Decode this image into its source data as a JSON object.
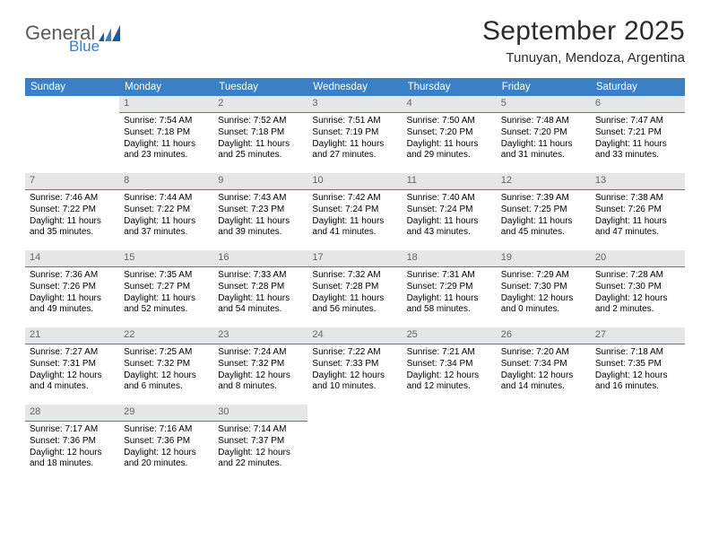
{
  "logo": {
    "text1": "General",
    "text2": "Blue"
  },
  "title": "September 2025",
  "location": "Tunuyan, Mendoza, Argentina",
  "days_of_week": [
    "Sunday",
    "Monday",
    "Tuesday",
    "Wednesday",
    "Thursday",
    "Friday",
    "Saturday"
  ],
  "colors": {
    "header_bg": "#3b7fc4",
    "header_text": "#ffffff",
    "daynum_bg": "#e6e6e6",
    "daynum_text": "#666666",
    "divider": "#3b7fc4"
  },
  "fonts": {
    "title_size_pt": 22,
    "location_size_pt": 11,
    "header_size_pt": 9,
    "body_size_pt": 7.5
  },
  "weeks": [
    [
      null,
      {
        "n": "1",
        "sunrise": "7:54 AM",
        "sunset": "7:18 PM",
        "daylight": "11 hours and 23 minutes."
      },
      {
        "n": "2",
        "sunrise": "7:52 AM",
        "sunset": "7:18 PM",
        "daylight": "11 hours and 25 minutes."
      },
      {
        "n": "3",
        "sunrise": "7:51 AM",
        "sunset": "7:19 PM",
        "daylight": "11 hours and 27 minutes."
      },
      {
        "n": "4",
        "sunrise": "7:50 AM",
        "sunset": "7:20 PM",
        "daylight": "11 hours and 29 minutes."
      },
      {
        "n": "5",
        "sunrise": "7:48 AM",
        "sunset": "7:20 PM",
        "daylight": "11 hours and 31 minutes."
      },
      {
        "n": "6",
        "sunrise": "7:47 AM",
        "sunset": "7:21 PM",
        "daylight": "11 hours and 33 minutes."
      }
    ],
    [
      {
        "n": "7",
        "sunrise": "7:46 AM",
        "sunset": "7:22 PM",
        "daylight": "11 hours and 35 minutes."
      },
      {
        "n": "8",
        "sunrise": "7:44 AM",
        "sunset": "7:22 PM",
        "daylight": "11 hours and 37 minutes."
      },
      {
        "n": "9",
        "sunrise": "7:43 AM",
        "sunset": "7:23 PM",
        "daylight": "11 hours and 39 minutes."
      },
      {
        "n": "10",
        "sunrise": "7:42 AM",
        "sunset": "7:24 PM",
        "daylight": "11 hours and 41 minutes."
      },
      {
        "n": "11",
        "sunrise": "7:40 AM",
        "sunset": "7:24 PM",
        "daylight": "11 hours and 43 minutes."
      },
      {
        "n": "12",
        "sunrise": "7:39 AM",
        "sunset": "7:25 PM",
        "daylight": "11 hours and 45 minutes."
      },
      {
        "n": "13",
        "sunrise": "7:38 AM",
        "sunset": "7:26 PM",
        "daylight": "11 hours and 47 minutes."
      }
    ],
    [
      {
        "n": "14",
        "sunrise": "7:36 AM",
        "sunset": "7:26 PM",
        "daylight": "11 hours and 49 minutes."
      },
      {
        "n": "15",
        "sunrise": "7:35 AM",
        "sunset": "7:27 PM",
        "daylight": "11 hours and 52 minutes."
      },
      {
        "n": "16",
        "sunrise": "7:33 AM",
        "sunset": "7:28 PM",
        "daylight": "11 hours and 54 minutes."
      },
      {
        "n": "17",
        "sunrise": "7:32 AM",
        "sunset": "7:28 PM",
        "daylight": "11 hours and 56 minutes."
      },
      {
        "n": "18",
        "sunrise": "7:31 AM",
        "sunset": "7:29 PM",
        "daylight": "11 hours and 58 minutes."
      },
      {
        "n": "19",
        "sunrise": "7:29 AM",
        "sunset": "7:30 PM",
        "daylight": "12 hours and 0 minutes."
      },
      {
        "n": "20",
        "sunrise": "7:28 AM",
        "sunset": "7:30 PM",
        "daylight": "12 hours and 2 minutes."
      }
    ],
    [
      {
        "n": "21",
        "sunrise": "7:27 AM",
        "sunset": "7:31 PM",
        "daylight": "12 hours and 4 minutes."
      },
      {
        "n": "22",
        "sunrise": "7:25 AM",
        "sunset": "7:32 PM",
        "daylight": "12 hours and 6 minutes."
      },
      {
        "n": "23",
        "sunrise": "7:24 AM",
        "sunset": "7:32 PM",
        "daylight": "12 hours and 8 minutes."
      },
      {
        "n": "24",
        "sunrise": "7:22 AM",
        "sunset": "7:33 PM",
        "daylight": "12 hours and 10 minutes."
      },
      {
        "n": "25",
        "sunrise": "7:21 AM",
        "sunset": "7:34 PM",
        "daylight": "12 hours and 12 minutes."
      },
      {
        "n": "26",
        "sunrise": "7:20 AM",
        "sunset": "7:34 PM",
        "daylight": "12 hours and 14 minutes."
      },
      {
        "n": "27",
        "sunrise": "7:18 AM",
        "sunset": "7:35 PM",
        "daylight": "12 hours and 16 minutes."
      }
    ],
    [
      {
        "n": "28",
        "sunrise": "7:17 AM",
        "sunset": "7:36 PM",
        "daylight": "12 hours and 18 minutes."
      },
      {
        "n": "29",
        "sunrise": "7:16 AM",
        "sunset": "7:36 PM",
        "daylight": "12 hours and 20 minutes."
      },
      {
        "n": "30",
        "sunrise": "7:14 AM",
        "sunset": "7:37 PM",
        "daylight": "12 hours and 22 minutes."
      },
      null,
      null,
      null,
      null
    ]
  ],
  "labels": {
    "sunrise": "Sunrise:",
    "sunset": "Sunset:",
    "daylight": "Daylight:"
  }
}
